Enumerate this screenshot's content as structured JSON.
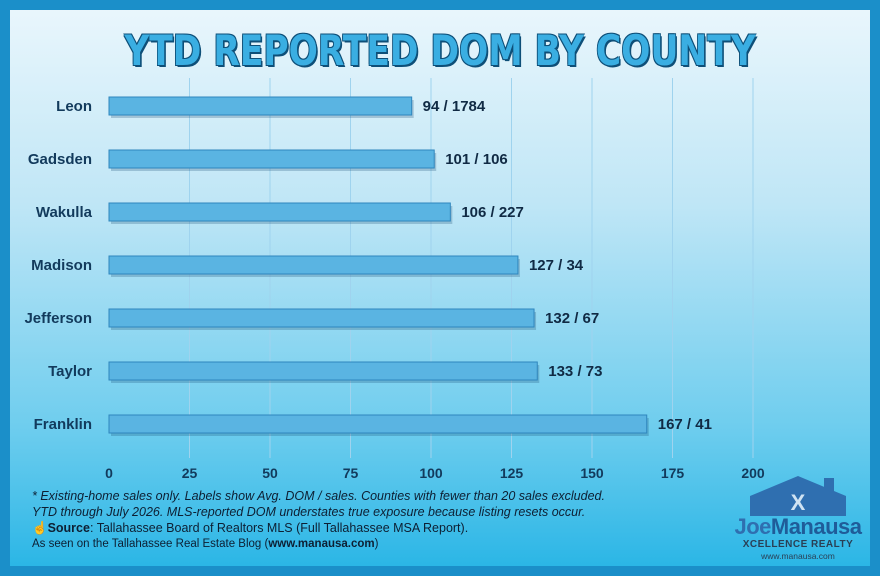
{
  "chart_data": {
    "type": "bar",
    "orientation": "horizontal",
    "title": "YTD REPORTED DOM BY COUNTY",
    "categories": [
      "Leon",
      "Gadsden",
      "Wakulla",
      "Madison",
      "Jefferson",
      "Taylor",
      "Franklin"
    ],
    "values": [
      94,
      101,
      106,
      127,
      132,
      133,
      167
    ],
    "data_labels": [
      "94 / 1784",
      "101 / 106",
      "106 / 227",
      "127 / 34",
      "132 / 67",
      "133 / 73",
      "167 / 41"
    ],
    "xlim": [
      0,
      200
    ],
    "xticks": [
      "0",
      "25",
      "50",
      "75",
      "100",
      "125",
      "150",
      "175",
      "200"
    ],
    "grid": "vertical",
    "bar_color": "#5ab4e2",
    "bar_edge_color": "#2f86bd"
  },
  "notes": {
    "line1": "* Existing-home sales only. Labels show Avg. DOM / sales. Counties with fewer than 20 sales excluded.",
    "line2": "YTD through July 2026. MLS-reported DOM understates true exposure because listing resets occur.",
    "source_label": "Source",
    "source_text": ": Tallahassee Board of Realtors MLS (Full Tallahassee MSA Report).",
    "seen_prefix": "As seen on the Tallahassee Real Estate Blog (",
    "seen_link": "www.manausa.com",
    "seen_suffix": ")"
  },
  "logo": {
    "first": "Joe",
    "last": "Manausa",
    "sub": "XCELLENCE REALTY",
    "url": "www.manausa.com"
  }
}
